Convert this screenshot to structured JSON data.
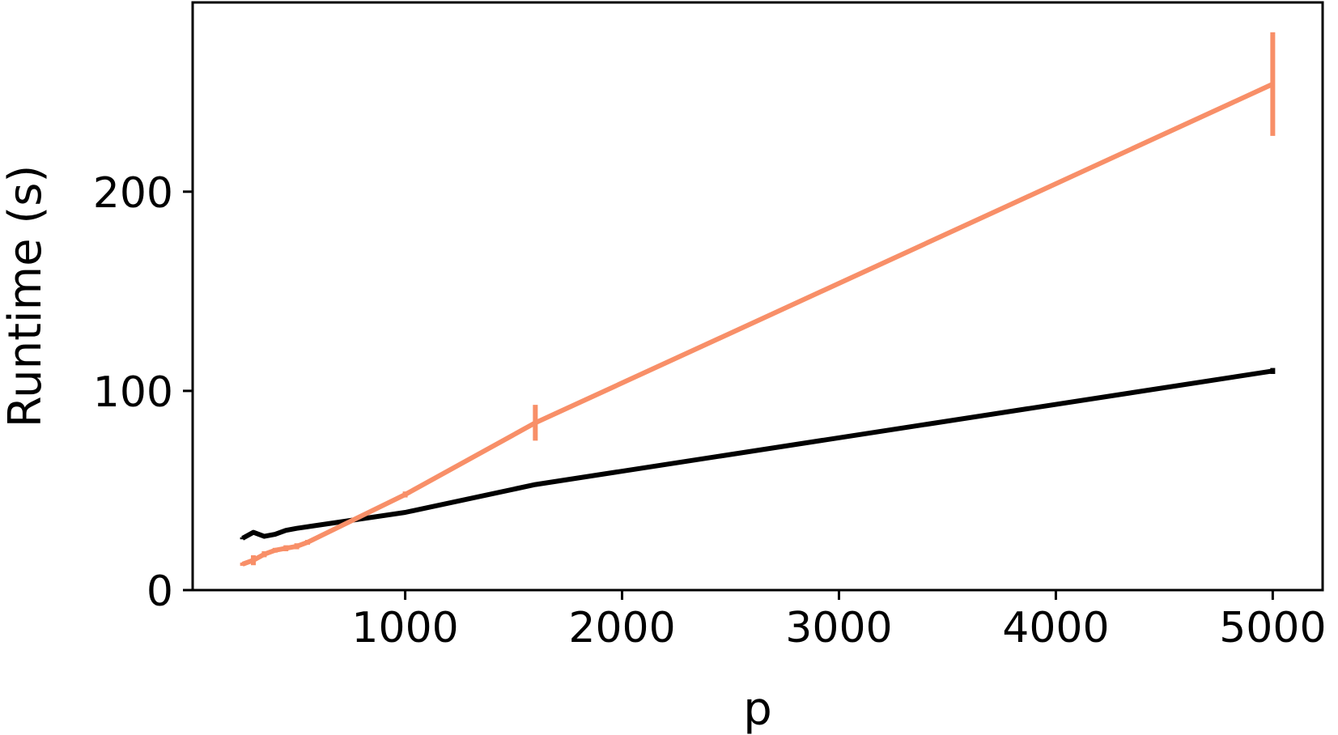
{
  "chart_data": {
    "type": "line",
    "title": "",
    "xlabel": "p",
    "ylabel": "Runtime (s)",
    "xlim": [
      20,
      5230
    ],
    "ylim": [
      0,
      295
    ],
    "xticks": [
      1000,
      2000,
      3000,
      4000,
      5000
    ],
    "xtick_labels": [
      "1000",
      "2000",
      "3000",
      "4000",
      "5000"
    ],
    "yticks": [
      0,
      100,
      200
    ],
    "ytick_labels": [
      "0",
      "100",
      "200"
    ],
    "grid": false,
    "legend": "none",
    "series": [
      {
        "color": "#000000",
        "x": [
          250,
          300,
          350,
          400,
          450,
          500,
          1000,
          1600,
          5000
        ],
        "y": [
          26,
          29,
          27,
          28,
          30,
          31,
          39,
          53,
          110
        ],
        "err": [
          0.5,
          0.5,
          0.5,
          0.5,
          0.5,
          0.5,
          0.5,
          0.8,
          1.5
        ]
      },
      {
        "color": "#f88f68",
        "x": [
          250,
          300,
          350,
          400,
          450,
          500,
          550,
          1000,
          1600,
          5000
        ],
        "y": [
          13,
          15,
          18,
          20,
          21,
          22,
          24,
          48,
          84,
          254
        ],
        "err": [
          0.8,
          2.5,
          1.5,
          1.2,
          1.5,
          1.5,
          1.2,
          1.5,
          9,
          26
        ]
      }
    ]
  }
}
